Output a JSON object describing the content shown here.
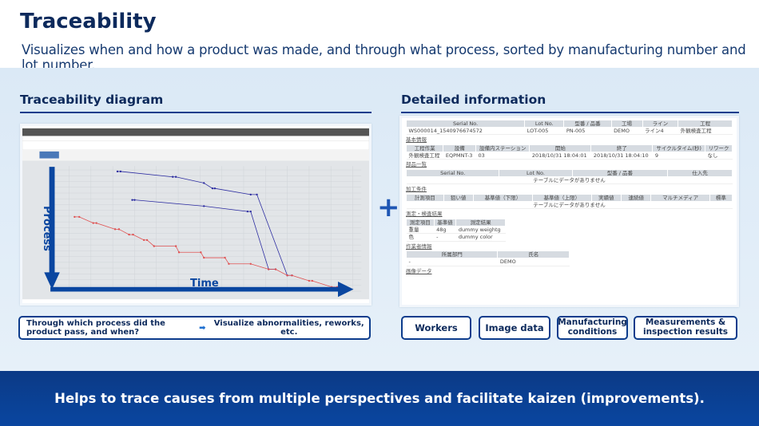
{
  "header": {
    "title": "Traceability",
    "subtitle": "Visualizes when and how a product was made, and through what process, sorted by manufacturing number and lot number."
  },
  "left": {
    "heading": "Traceability diagram",
    "axis_process": "Process",
    "axis_time": "Time",
    "caption_question": "Through which process did the product pass, and when?",
    "caption_result": "Visualize abnormalities, reworks, etc."
  },
  "right": {
    "heading": "Detailed information",
    "main_table": {
      "headers": [
        "Serial No.",
        "Lot No.",
        "型番 / 品番",
        "工場",
        "ライン",
        "工程"
      ],
      "row": [
        "WS000014_1540976674572",
        "LOT-005",
        "PN-005",
        "DEMO",
        "ライン4",
        "外観検査工程"
      ]
    },
    "basic": {
      "label": "基本情報",
      "headers": [
        "工程作業",
        "設備",
        "設備内ステーション",
        "開始",
        "終了",
        "サイクルタイム(秒)",
        "リワーク"
      ],
      "row": [
        "外観検査工程",
        "EQPMNT-3",
        "03",
        "2018/10/31 18:04:01",
        "2018/10/31 18:04:10",
        "9",
        "なし"
      ]
    },
    "parts": {
      "label": "部品一覧",
      "headers": [
        "Serial No.",
        "Lot No.",
        "型番 / 品番",
        "仕入先"
      ],
      "empty": "テーブルにデータがありません"
    },
    "process_cond": {
      "label": "加工条件",
      "headers": [
        "計測項目",
        "狙い値",
        "基準値（下限）",
        "基準値（上限）",
        "実績値",
        "連続値",
        "マルチメディア",
        "標準"
      ],
      "empty": "テーブルにデータがありません"
    },
    "measure": {
      "label": "測定・検査結果",
      "headers": [
        "測定項目",
        "基準値",
        "測定結果"
      ],
      "rows": [
        [
          "重量",
          "48g",
          "dummy weightg"
        ],
        [
          "色",
          "-",
          "dummy color"
        ]
      ]
    },
    "worker": {
      "label": "作業者情報",
      "headers": [
        "所属部門",
        "氏名"
      ],
      "row": [
        "-",
        "DEMO"
      ]
    },
    "image": {
      "label": "画像データ"
    }
  },
  "buttons": [
    "Workers",
    "Image data",
    "Manufacturing conditions",
    "Measurements & inspection results"
  ],
  "banner": "Helps to trace causes from multiple perspectives and facilitate kaizen (improvements).",
  "colors": {
    "navy": "#0d2a5c",
    "accent": "#0d3c8c",
    "banner": "#0a46a0",
    "series_blue": "#2a2aa0",
    "series_red": "#e05050"
  }
}
